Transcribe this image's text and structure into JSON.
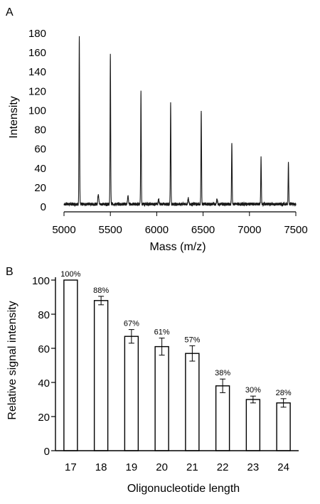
{
  "panels": {
    "a": {
      "label": "A"
    },
    "b": {
      "label": "B"
    }
  },
  "chart_data": [
    {
      "type": "line",
      "panel": "A",
      "xlabel": "Mass (m/z)",
      "ylabel": "Intensity",
      "xlim": [
        5000,
        7500
      ],
      "ylim": [
        -5,
        185
      ],
      "x_ticks": [
        5000,
        5500,
        6000,
        6500,
        7000,
        7500
      ],
      "y_ticks": [
        0,
        20,
        40,
        60,
        80,
        100,
        120,
        140,
        160,
        180
      ],
      "grid": false,
      "baseline": 3,
      "peaks": [
        {
          "x": 5165,
          "y": 174
        },
        {
          "x": 5500,
          "y": 156
        },
        {
          "x": 5830,
          "y": 117
        },
        {
          "x": 6150,
          "y": 105
        },
        {
          "x": 6480,
          "y": 97
        },
        {
          "x": 6810,
          "y": 64
        },
        {
          "x": 7125,
          "y": 49
        },
        {
          "x": 7420,
          "y": 45
        }
      ],
      "minor_peaks": [
        {
          "x": 5370,
          "y": 11
        },
        {
          "x": 5690,
          "y": 8
        },
        {
          "x": 6340,
          "y": 6
        },
        {
          "x": 6020,
          "y": 5
        },
        {
          "x": 6650,
          "y": 5
        }
      ]
    },
    {
      "type": "bar",
      "panel": "B",
      "xlabel": "Oligonucleotide length",
      "ylabel": "Relative signal intensity",
      "categories": [
        "17",
        "18",
        "19",
        "20",
        "21",
        "22",
        "23",
        "24"
      ],
      "values": [
        100,
        88,
        67,
        61,
        57,
        38,
        30,
        28
      ],
      "errors": [
        0,
        2.5,
        4,
        5,
        4.5,
        4,
        2,
        2.5
      ],
      "value_labels": [
        "100%",
        "88%",
        "67%",
        "61%",
        "57%",
        "38%",
        "30%",
        "28%"
      ],
      "ylim": [
        0,
        100
      ],
      "y_ticks": [
        0,
        20,
        40,
        60,
        80,
        100
      ],
      "grid": false
    }
  ]
}
